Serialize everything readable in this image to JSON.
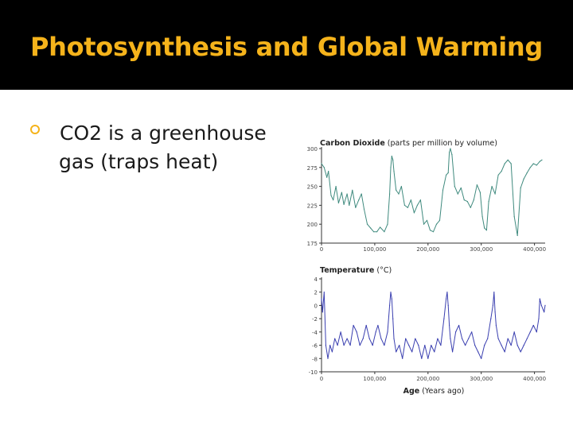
{
  "slide": {
    "title": "Photosynthesis and Global Warming",
    "bullet_line_1": "CO2 is a greenhouse",
    "bullet_line_2": "gas (traps heat)"
  },
  "chart_data": [
    {
      "type": "line",
      "title": "Carbon Dioxide",
      "title_unit": "(parts per million by volume)",
      "x_ticks": [
        "0",
        "100,000",
        "200,000",
        "300,000",
        "400,000"
      ],
      "y_ticks": [
        "300",
        "275",
        "250",
        "225",
        "200",
        "175"
      ],
      "xlim": [
        0,
        420000
      ],
      "ylim": [
        175,
        300
      ],
      "color": "#3f8a7e",
      "series": [
        {
          "x": [
            0,
            5000,
            10000,
            13000,
            18000,
            22000,
            27000,
            32000,
            38000,
            42000,
            48000,
            52000,
            58000,
            64000,
            70000,
            75000,
            80000,
            86000,
            92000,
            98000,
            104000,
            110000,
            118000,
            124000,
            128000,
            130000,
            132000,
            134000,
            136000,
            140000,
            145000,
            150000,
            156000,
            162000,
            168000,
            174000,
            180000,
            186000,
            192000,
            198000,
            204000,
            210000,
            216000,
            222000,
            228000,
            234000,
            238000,
            240000,
            242000,
            245000,
            250000,
            256000,
            262000,
            268000,
            274000,
            280000,
            286000,
            292000,
            298000,
            302000,
            306000,
            310000,
            314000,
            320000,
            326000,
            332000,
            338000,
            344000,
            350000,
            356000,
            362000,
            368000,
            374000,
            380000,
            386000,
            392000,
            398000,
            404000,
            410000,
            414000
          ],
          "y": [
            280,
            275,
            262,
            270,
            238,
            232,
            250,
            228,
            242,
            226,
            240,
            225,
            245,
            222,
            232,
            240,
            220,
            200,
            195,
            190,
            190,
            196,
            190,
            200,
            240,
            275,
            290,
            285,
            270,
            245,
            240,
            250,
            225,
            222,
            232,
            215,
            225,
            232,
            200,
            205,
            192,
            190,
            200,
            205,
            245,
            265,
            268,
            295,
            300,
            292,
            250,
            240,
            248,
            232,
            230,
            222,
            232,
            252,
            242,
            210,
            195,
            192,
            230,
            250,
            240,
            265,
            270,
            280,
            285,
            280,
            210,
            185,
            248,
            260,
            268,
            275,
            280,
            278,
            283,
            285
          ]
        }
      ]
    },
    {
      "type": "line",
      "title": "Temperature",
      "title_unit": "(°C)",
      "xlabel": "Age",
      "xlabel_unit": "(Years ago)",
      "x_ticks": [
        "0",
        "100,000",
        "200,000",
        "300,000",
        "400,000"
      ],
      "y_ticks": [
        "4",
        "2",
        "0",
        "-2",
        "-4",
        "-6",
        "-8",
        "-10"
      ],
      "xlim": [
        0,
        420000
      ],
      "ylim": [
        -10,
        4
      ],
      "color": "#3a3fb0",
      "series": [
        {
          "x": [
            0,
            2000,
            5000,
            8000,
            12000,
            16000,
            20000,
            25000,
            30000,
            36000,
            42000,
            48000,
            54000,
            60000,
            66000,
            72000,
            78000,
            84000,
            90000,
            96000,
            102000,
            106000,
            112000,
            118000,
            124000,
            128000,
            130000,
            132000,
            134000,
            136000,
            140000,
            146000,
            152000,
            158000,
            164000,
            170000,
            176000,
            182000,
            188000,
            194000,
            200000,
            206000,
            212000,
            218000,
            224000,
            230000,
            234000,
            236000,
            238000,
            240000,
            242000,
            246000,
            252000,
            258000,
            264000,
            270000,
            276000,
            282000,
            288000,
            294000,
            300000,
            306000,
            312000,
            318000,
            322000,
            324000,
            326000,
            328000,
            332000,
            338000,
            344000,
            350000,
            356000,
            362000,
            368000,
            374000,
            380000,
            386000,
            392000,
            398000,
            404000,
            408000,
            410000,
            413000,
            418000,
            420000
          ],
          "y": [
            1,
            -1,
            2,
            -6,
            -8,
            -6,
            -7,
            -5,
            -6,
            -4,
            -6,
            -5,
            -6,
            -3,
            -4,
            -6,
            -5,
            -3,
            -5,
            -6,
            -4,
            -3,
            -5,
            -6,
            -4,
            0,
            2,
            1,
            -2,
            -5,
            -7,
            -6,
            -8,
            -5,
            -6,
            -7,
            -5,
            -6,
            -8,
            -6,
            -8,
            -6,
            -7,
            -5,
            -6,
            -2,
            1,
            2,
            0,
            -3,
            -5,
            -7,
            -4,
            -3,
            -5,
            -6,
            -5,
            -4,
            -6,
            -7,
            -8,
            -6,
            -5,
            -2,
            0,
            2,
            -1,
            -3,
            -5,
            -6,
            -7,
            -5,
            -6,
            -4,
            -6,
            -7,
            -6,
            -5,
            -4,
            -3,
            -4,
            -2,
            1,
            0,
            -1,
            0
          ]
        }
      ]
    }
  ]
}
